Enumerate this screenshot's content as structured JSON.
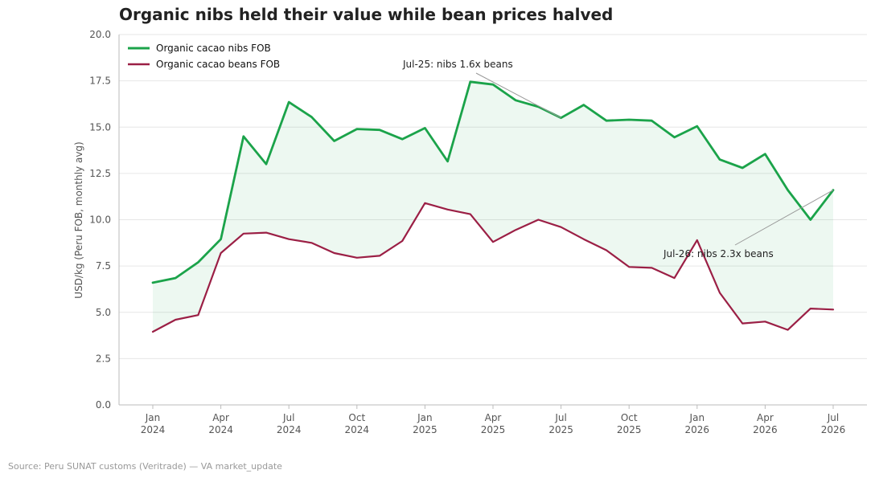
{
  "chart_data": {
    "type": "line",
    "title": "Organic nibs held their value while bean prices halved",
    "ylabel": "USD/kg (Peru FOB, monthly avg)",
    "xlabel": "",
    "ylim": [
      0,
      20
    ],
    "yticks": [
      "0.0",
      "2.5",
      "5.0",
      "7.5",
      "10.0",
      "12.5",
      "15.0",
      "17.5",
      "20.0"
    ],
    "x": [
      "2024-01",
      "2024-02",
      "2024-03",
      "2024-04",
      "2024-05",
      "2024-06",
      "2024-07",
      "2024-08",
      "2024-09",
      "2024-10",
      "2024-11",
      "2024-12",
      "2025-01",
      "2025-02",
      "2025-03",
      "2025-04",
      "2025-05",
      "2025-06",
      "2025-07",
      "2025-08",
      "2025-09",
      "2025-10",
      "2025-11",
      "2025-12",
      "2026-01",
      "2026-02",
      "2026-03",
      "2026-04",
      "2026-05",
      "2026-06",
      "2026-07"
    ],
    "xticks": [
      {
        "x": "2024-01",
        "month": "Jan",
        "year": "2024"
      },
      {
        "x": "2024-04",
        "month": "Apr",
        "year": "2024"
      },
      {
        "x": "2024-07",
        "month": "Jul",
        "year": "2024"
      },
      {
        "x": "2024-10",
        "month": "Oct",
        "year": "2024"
      },
      {
        "x": "2025-01",
        "month": "Jan",
        "year": "2025"
      },
      {
        "x": "2025-04",
        "month": "Apr",
        "year": "2025"
      },
      {
        "x": "2025-07",
        "month": "Jul",
        "year": "2025"
      },
      {
        "x": "2025-10",
        "month": "Oct",
        "year": "2025"
      },
      {
        "x": "2026-01",
        "month": "Jan",
        "year": "2026"
      },
      {
        "x": "2026-04",
        "month": "Apr",
        "year": "2026"
      },
      {
        "x": "2026-07",
        "month": "Jul",
        "year": "2026"
      }
    ],
    "series": [
      {
        "name": "Organic cacao nibs FOB",
        "color": "#1ba34a",
        "values": [
          6.6,
          6.85,
          7.7,
          8.95,
          14.5,
          13.0,
          16.35,
          15.55,
          14.25,
          14.9,
          14.85,
          14.35,
          14.95,
          13.15,
          17.45,
          17.3,
          16.45,
          16.1,
          15.5,
          16.2,
          15.35,
          15.4,
          15.35,
          14.45,
          15.05,
          13.25,
          12.8,
          13.55,
          11.6,
          10.0,
          11.6
        ]
      },
      {
        "name": "Organic cacao beans FOB",
        "color": "#9b1f45",
        "values": [
          3.95,
          4.6,
          4.85,
          8.2,
          9.25,
          9.3,
          8.95,
          8.75,
          8.2,
          7.95,
          8.05,
          8.85,
          10.9,
          10.55,
          10.3,
          8.8,
          9.45,
          10.0,
          9.6,
          8.95,
          8.35,
          7.45,
          7.4,
          6.85,
          8.9,
          6.05,
          4.4,
          4.5,
          4.05,
          5.2,
          5.15
        ]
      }
    ],
    "fill_between": {
      "color": "#1ba34a",
      "opacity": 0.08
    },
    "grid": true,
    "legend_position": "top-left",
    "annotations": [
      {
        "text": "Jul-25: nibs 1.6x beans",
        "x": "2025-07",
        "y": 15.5
      },
      {
        "text": "Jul-26: nibs 2.3x beans",
        "x": "2026-07",
        "y": 11.6
      }
    ]
  },
  "footer": {
    "source": "Source: Peru SUNAT customs (Veritrade) — VA market_update"
  },
  "colors": {
    "grid": "#e6e6e6",
    "axis": "#bbbbbb",
    "connector": "#999999"
  }
}
